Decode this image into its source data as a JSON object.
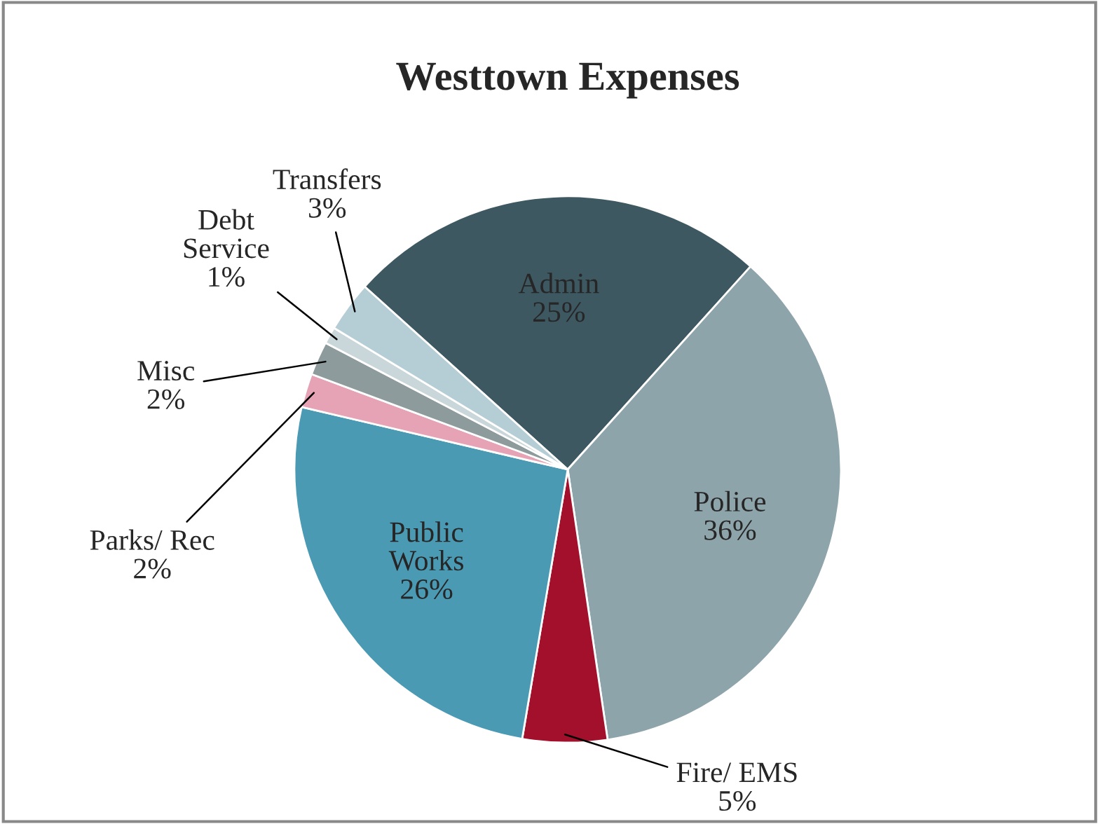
{
  "chart_data": {
    "type": "pie",
    "title": "Westtown Expenses",
    "categories": [
      "Admin",
      "Police",
      "Fire/ EMS",
      "Public\nWorks",
      "Parks/ Rec",
      "Misc",
      "Debt\nService",
      "Transfers"
    ],
    "values": [
      25,
      36,
      5,
      26,
      2,
      2,
      1,
      3
    ],
    "colors": [
      "#3e5862",
      "#8ea4ab",
      "#a3102c",
      "#4b9ab4",
      "#e6a3b6",
      "#8d9b9c",
      "#c9d6da",
      "#b5cdd4"
    ],
    "value_labels": [
      "25%",
      "36%",
      "5%",
      "26%",
      "2%",
      "2%",
      "1%",
      "3%"
    ],
    "legend": false
  }
}
